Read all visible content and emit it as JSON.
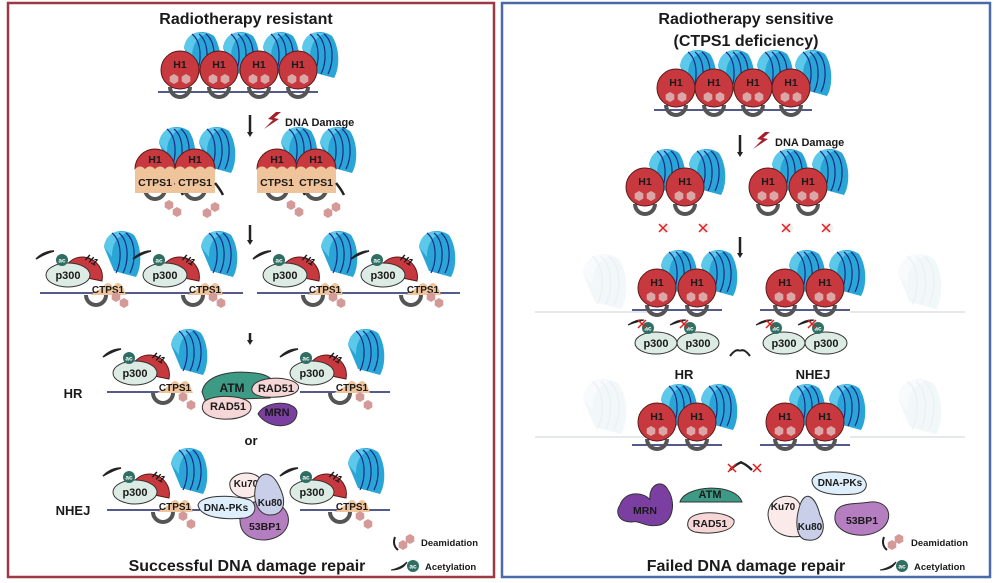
{
  "left_panel": {
    "title": "Radiotherapy resistant",
    "damage_label": "DNA Damage",
    "hr_label": "HR",
    "or_label": "or",
    "nhej_label": "NHEJ",
    "footer": "Successful DNA damage repair",
    "border_color": "#9b3a42"
  },
  "right_panel": {
    "title_line1": "Radiotherapy sensitive",
    "title_line2": "(CTPS1 deficiency)",
    "damage_label": "DNA Damage",
    "hr_label": "HR",
    "nhej_label": "NHEJ",
    "footer": "Failed DNA damage repair",
    "border_color": "#4a6aa8"
  },
  "molecules": {
    "h1": "H1",
    "ctps1": "CTPS1",
    "p300": "p300",
    "ac": "ac",
    "atm": "ATM",
    "rad51": "RAD51",
    "mrn": "MRN",
    "ku70": "Ku70",
    "ku80": "Ku80",
    "dnapks": "DNA-PKs",
    "bp53": "53BP1"
  },
  "legend": {
    "deamidation": "Deamidation",
    "acetylation": "Acetylation"
  },
  "colors": {
    "histone_red": "#c8393f",
    "nucleosome_blue": "#2aa6d6",
    "ctps1": "#f0c49a",
    "deamidation_hex": "#d49a98",
    "p300": "#dcebe4",
    "acetyl": "#2f6e62",
    "atm": "#3d9a85",
    "rad51": "#f6d6d6",
    "mrn": "#7a3fa0",
    "ku70": "#fbeaea",
    "ku80": "#c9cfe8",
    "dnapks": "#deeefa",
    "bp53": "#b57ec0"
  }
}
